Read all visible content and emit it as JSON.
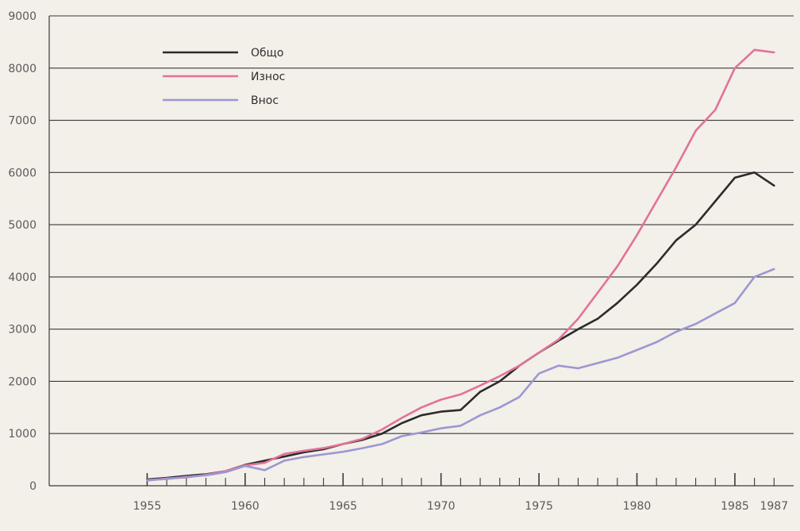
{
  "chart_data": {
    "type": "line",
    "title": "",
    "xlabel": "",
    "ylabel": "",
    "x": [
      1955,
      1956,
      1957,
      1958,
      1959,
      1960,
      1961,
      1962,
      1963,
      1964,
      1965,
      1966,
      1967,
      1968,
      1969,
      1970,
      1971,
      1972,
      1973,
      1974,
      1975,
      1976,
      1977,
      1978,
      1979,
      1980,
      1981,
      1982,
      1983,
      1984,
      1985,
      1986,
      1987
    ],
    "xlim": [
      1950,
      1988
    ],
    "ylim": [
      0,
      9000
    ],
    "x_ticks": [
      "1955",
      "1960",
      "1965",
      "1970",
      "1975",
      "1980",
      "1985",
      "1987"
    ],
    "y_ticks": [
      "0",
      "1000",
      "2000",
      "3000",
      "4000",
      "5000",
      "6000",
      "7000",
      "8000",
      "9000"
    ],
    "grid": "horizontal",
    "legend_position": "top-left",
    "series": [
      {
        "name": "Общо",
        "color": "#2b2b2b",
        "values": [
          120,
          150,
          190,
          220,
          280,
          400,
          480,
          560,
          640,
          700,
          800,
          880,
          1000,
          1200,
          1350,
          1420,
          1450,
          1800,
          2000,
          2300,
          2550,
          2780,
          3000,
          3200,
          3500,
          3850,
          4250,
          4700,
          5000,
          5450,
          5900,
          6000,
          5750
        ]
      },
      {
        "name": "Износ",
        "color": "#e0739a",
        "values": [
          100,
          140,
          160,
          210,
          280,
          390,
          440,
          610,
          670,
          720,
          800,
          900,
          1080,
          1300,
          1500,
          1650,
          1750,
          1920,
          2100,
          2300,
          2550,
          2800,
          3200,
          3700,
          4200,
          4800,
          5450,
          6100,
          6800,
          7200,
          8000,
          8350,
          8300
        ]
      },
      {
        "name": "Внос",
        "color": "#9c97d2",
        "values": [
          110,
          130,
          170,
          200,
          260,
          380,
          300,
          480,
          550,
          600,
          650,
          720,
          800,
          950,
          1020,
          1100,
          1150,
          1350,
          1500,
          1700,
          2150,
          2300,
          2250,
          2350,
          2450,
          2600,
          2750,
          2950,
          3100,
          3300,
          3500,
          4000,
          4150
        ]
      }
    ]
  }
}
